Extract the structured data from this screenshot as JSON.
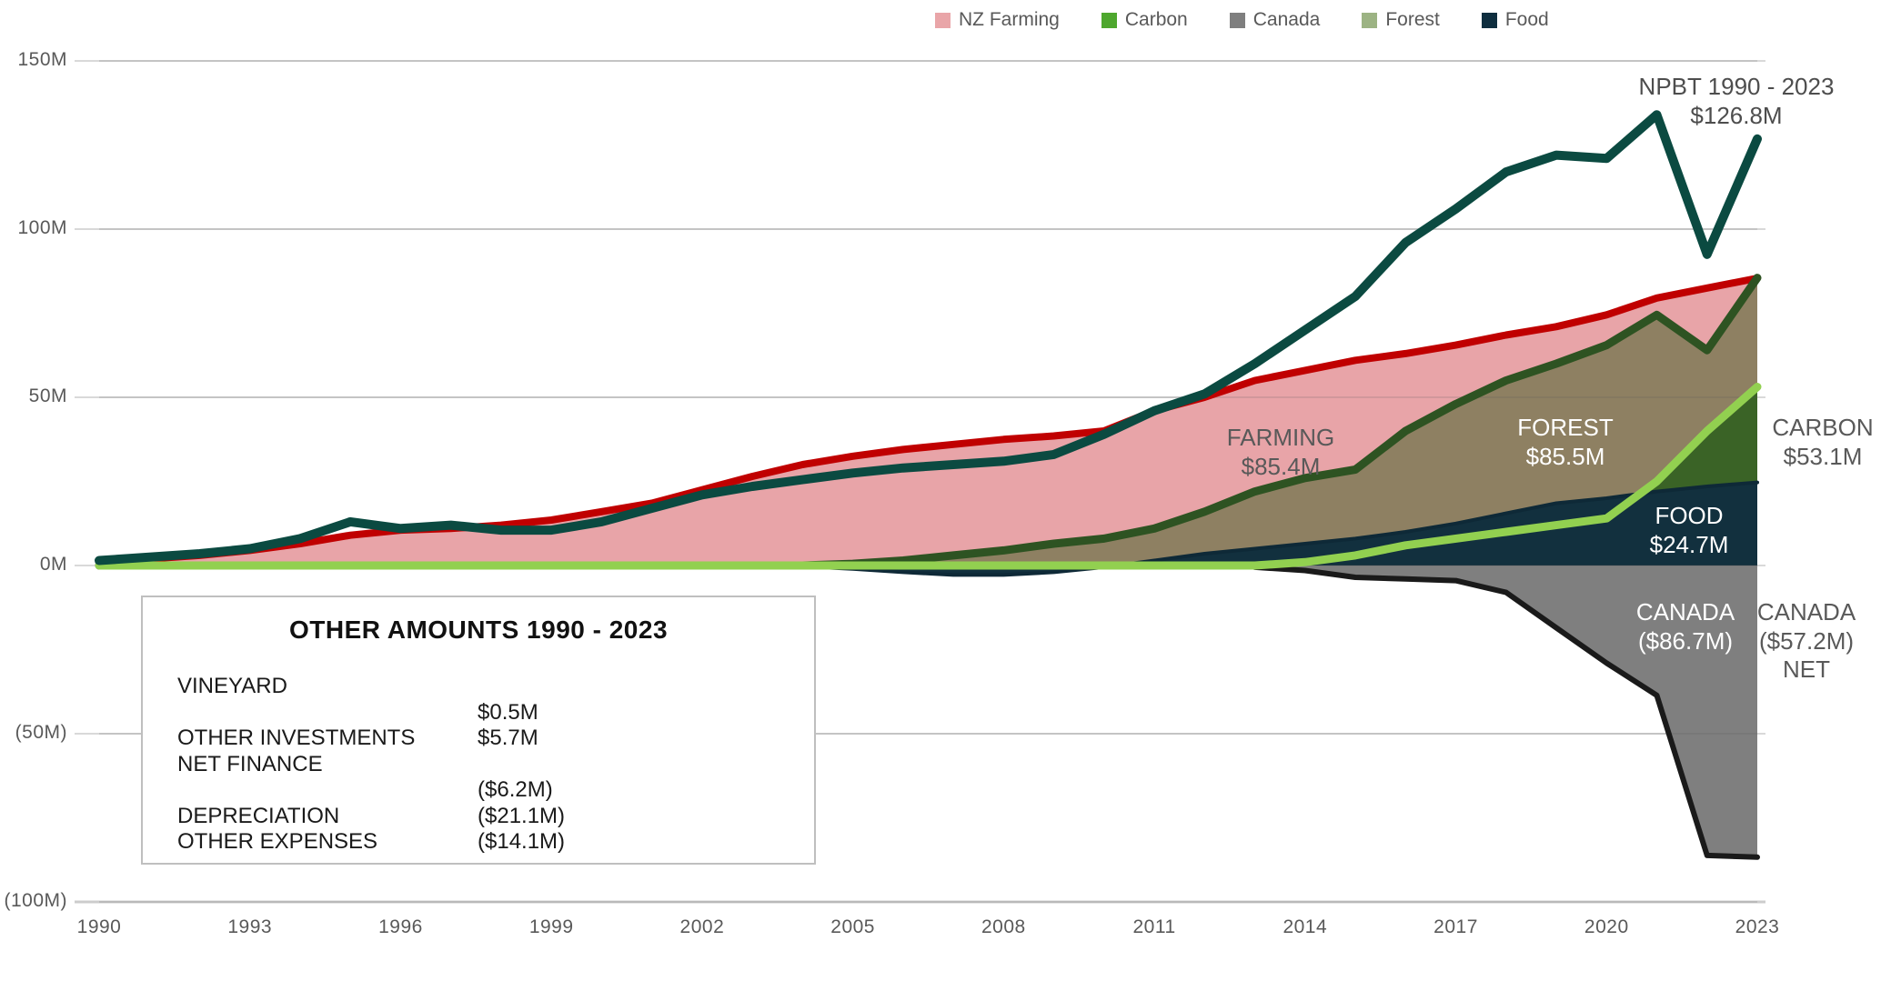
{
  "legend": {
    "items": [
      {
        "label": "NZ Farming",
        "color": "#E9A5A8"
      },
      {
        "label": "Carbon",
        "color": "#4EA72E"
      },
      {
        "label": "Canada",
        "color": "#7F7F7F"
      },
      {
        "label": "Forest",
        "color": "#9CB383"
      },
      {
        "label": "Food",
        "color": "#0F2E3F"
      }
    ]
  },
  "chart_data": {
    "type": "area",
    "unit": "$M cumulative",
    "years": [
      1990,
      1991,
      1992,
      1993,
      1994,
      1995,
      1996,
      1997,
      1998,
      1999,
      2000,
      2001,
      2002,
      2003,
      2004,
      2005,
      2006,
      2007,
      2008,
      2009,
      2010,
      2011,
      2012,
      2013,
      2014,
      2015,
      2016,
      2017,
      2018,
      2019,
      2020,
      2021,
      2022,
      2023
    ],
    "x_ticks": [
      1990,
      1993,
      1996,
      1999,
      2002,
      2005,
      2008,
      2011,
      2014,
      2017,
      2020,
      2023
    ],
    "y_ticks": [
      {
        "value": 150,
        "label": "150M"
      },
      {
        "value": 100,
        "label": "100M"
      },
      {
        "value": 50,
        "label": "50M"
      },
      {
        "value": 0,
        "label": "0M"
      },
      {
        "value": -50,
        "label": "(50M)"
      },
      {
        "value": -100,
        "label": "(100M)"
      }
    ],
    "ylim": [
      -100,
      150
    ],
    "gridline_color": "#D9D9D9",
    "series": [
      {
        "key": "farming",
        "name": "NZ Farming",
        "total_label": "$85.4M",
        "area_color": "#E8A4A8",
        "line_color": "#C00000",
        "line_width": 8,
        "values": [
          1,
          2,
          3,
          4.5,
          6.5,
          9,
          10.5,
          11,
          12,
          13.5,
          16,
          18.5,
          22.5,
          26.5,
          30,
          32.5,
          34.5,
          36,
          37.5,
          38.5,
          40,
          46,
          50,
          55,
          58,
          61,
          63,
          65.5,
          68.5,
          71,
          74.5,
          79.5,
          82.5,
          85.4
        ]
      },
      {
        "key": "forest",
        "name": "Forest",
        "total_label": "$85.5M",
        "area_color": "#8E8062",
        "line_color": "#2E5322",
        "line_width": 9,
        "values": [
          0,
          0,
          0,
          0,
          0,
          0,
          0,
          0,
          0,
          0,
          0,
          0,
          0,
          0,
          0,
          0.5,
          1.5,
          3,
          4.5,
          6.5,
          8,
          11,
          16,
          22,
          26,
          28.5,
          40,
          48,
          55,
          60,
          65.5,
          74.5,
          64,
          85.5
        ]
      },
      {
        "key": "carbon",
        "name": "Carbon",
        "total_label": "$53.1M",
        "area_color": "#3A6326",
        "line_color": "#92D050",
        "line_width": 9,
        "values": [
          0,
          0,
          0,
          0,
          0,
          0,
          0,
          0,
          0,
          0,
          0,
          0,
          0,
          0,
          0,
          0,
          0,
          0,
          0,
          0,
          0,
          0,
          0,
          0,
          1,
          3,
          6,
          8,
          10,
          12,
          14,
          25,
          40,
          53.1
        ]
      },
      {
        "key": "food",
        "name": "Food",
        "total_label": "$24.7M",
        "area_color": "#12303E",
        "line_color": "#0E2937",
        "line_width": 4,
        "values": [
          0,
          0,
          0,
          0,
          0,
          0,
          0,
          0,
          0,
          0,
          0,
          0,
          0,
          0,
          -0.3,
          -1,
          -2,
          -2.8,
          -2.8,
          -2,
          -0.5,
          1.5,
          3.5,
          5,
          6.5,
          8,
          10,
          12.5,
          15.5,
          18.5,
          20,
          22,
          23.5,
          24.7
        ]
      },
      {
        "key": "canada",
        "name": "Canada",
        "total_label": "($86.7M)",
        "net_label": "($57.2M) NET",
        "area_color": "#7F7F7F",
        "line_color": "#1A1A1A",
        "line_width": 6,
        "line_start_year": 2013,
        "values": [
          0,
          0,
          0,
          0,
          0,
          0,
          0,
          0,
          0,
          0,
          0,
          0,
          0,
          0,
          0,
          0,
          0,
          0,
          0,
          0,
          0,
          0,
          0,
          -0.5,
          -1.5,
          -3.5,
          -4,
          -4.5,
          -8,
          -18.5,
          -29,
          -38.6,
          -86.2,
          -86.7
        ]
      },
      {
        "key": "npbt",
        "name": "NPBT",
        "total_label": "$126.8M",
        "area_color": null,
        "line_color": "#0B4A41",
        "line_width": 10,
        "values": [
          1.5,
          2.5,
          3.5,
          5,
          8,
          13,
          11,
          12,
          10.5,
          10.5,
          13,
          17,
          21,
          23.5,
          25.5,
          27.5,
          29,
          30,
          31,
          33,
          39,
          46,
          51,
          60,
          70,
          80,
          96,
          106,
          117,
          122,
          121,
          134,
          92.5,
          126.8
        ]
      }
    ]
  },
  "annotations": {
    "npbt": {
      "line1": "NPBT 1990 - 2023",
      "line2": "$126.8M"
    },
    "farming": {
      "line1": "FARMING",
      "line2": "$85.4M"
    },
    "forest": {
      "line1": "FOREST",
      "line2": "$85.5M"
    },
    "carbon": {
      "line1": "CARBON",
      "line2": "$53.1M"
    },
    "food": {
      "line1": "FOOD",
      "line2": "$24.7M"
    },
    "canada_gross": {
      "line1": "CANADA",
      "line2": "($86.7M)"
    },
    "canada_net": {
      "line1": "CANADA",
      "line2": "($57.2M)",
      "line3": "NET"
    }
  },
  "other_amounts": {
    "title": "OTHER AMOUNTS 1990 - 2023",
    "rows": [
      {
        "label": "VINEYARD",
        "value": ""
      },
      {
        "label": "",
        "value": "$0.5M"
      },
      {
        "label": "OTHER INVESTMENTS",
        "value": "$5.7M"
      },
      {
        "label": "NET FINANCE",
        "value": ""
      },
      {
        "label": "",
        "value": "($6.2M)"
      },
      {
        "label": "DEPRECIATION",
        "value": "($21.1M)"
      },
      {
        "label": "OTHER EXPENSES",
        "value": "($14.1M)"
      }
    ]
  }
}
